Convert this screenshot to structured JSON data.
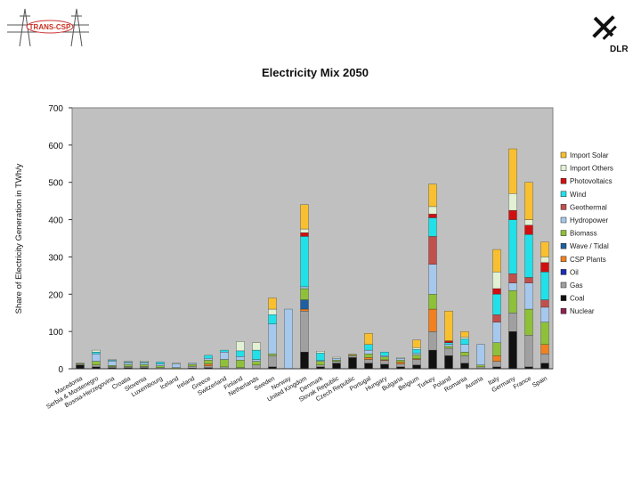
{
  "logos": {
    "left_text": "TRANS-CSP",
    "right_text": "DLR"
  },
  "colors": {
    "Nuclear": "#8b2252",
    "Coal": "#111111",
    "Gas": "#a0a0a0",
    "Oil": "#1a2fb0",
    "CSP Plants": "#f08020",
    "Wave / Tidal": "#1f5fa0",
    "Biomass": "#8ec03a",
    "Hydropower": "#a6c8ec",
    "Geothermal": "#c0504d",
    "Wind": "#22e0e8",
    "Photovoltaics": "#d01010",
    "Import Others": "#e2f0d4",
    "Import Solar": "#f8c030"
  },
  "chart_data": {
    "type": "bar",
    "stacked": true,
    "title": "Electricity Mix 2050",
    "ylabel": "Share of Electricity Generation in TWh/y",
    "xlabel": "",
    "ylim": [
      0,
      700
    ],
    "yticks": [
      0,
      100,
      200,
      300,
      400,
      500,
      600,
      700
    ],
    "grid": false,
    "legend_position": "right",
    "legend": [
      "Import Solar",
      "Import Others",
      "Photovoltaics",
      "Wind",
      "Geothermal",
      "Hydropower",
      "Biomass",
      "Wave / Tidal",
      "CSP Plants",
      "Oil",
      "Gas",
      "Coal",
      "Nuclear"
    ],
    "categories": [
      "Macedonia",
      "Serbia & Montenegro",
      "Bosnia-Herzegovina",
      "Croatia",
      "Slovenia",
      "Luxembourg",
      "Iceland",
      "Ireland",
      "Greece",
      "Switzerland",
      "Finland",
      "Netherlands",
      "Sweden",
      "Norway",
      "United Kingdom",
      "Denmark",
      "Slovak Republic",
      "Czech Republic",
      "Portugal",
      "Hungary",
      "Bulgaria",
      "Belgium",
      "Turkey",
      "Poland",
      "Romania",
      "Austria",
      "Italy",
      "Germany",
      "France",
      "Spain"
    ],
    "series": [
      {
        "name": "Nuclear",
        "values": [
          0,
          0,
          0,
          0,
          0,
          0,
          0,
          0,
          0,
          0,
          0,
          0,
          0,
          0,
          0,
          0,
          0,
          0,
          0,
          0,
          0,
          0,
          0,
          0,
          0,
          0,
          0,
          0,
          0,
          0
        ]
      },
      {
        "name": "Coal",
        "values": [
          10,
          5,
          3,
          3,
          3,
          0,
          0,
          2,
          3,
          0,
          0,
          0,
          5,
          0,
          45,
          5,
          15,
          30,
          15,
          12,
          5,
          10,
          50,
          35,
          15,
          0,
          5,
          100,
          5,
          15
        ]
      },
      {
        "name": "Gas",
        "values": [
          3,
          5,
          3,
          3,
          3,
          3,
          0,
          5,
          5,
          5,
          3,
          10,
          30,
          0,
          110,
          5,
          5,
          5,
          10,
          10,
          8,
          15,
          50,
          20,
          20,
          5,
          15,
          50,
          85,
          25
        ]
      },
      {
        "name": "Oil",
        "values": [
          0,
          0,
          0,
          0,
          0,
          0,
          0,
          0,
          0,
          0,
          0,
          0,
          0,
          0,
          0,
          0,
          0,
          0,
          0,
          0,
          0,
          0,
          0,
          0,
          0,
          0,
          0,
          0,
          0,
          0
        ]
      },
      {
        "name": "CSP Plants",
        "values": [
          0,
          0,
          0,
          0,
          0,
          0,
          0,
          0,
          5,
          0,
          0,
          0,
          0,
          0,
          5,
          0,
          0,
          0,
          5,
          2,
          5,
          2,
          60,
          0,
          0,
          0,
          15,
          0,
          0,
          25
        ]
      },
      {
        "name": "Wave / Tidal",
        "values": [
          0,
          0,
          0,
          0,
          0,
          0,
          0,
          0,
          0,
          0,
          0,
          0,
          0,
          0,
          25,
          0,
          0,
          0,
          0,
          0,
          0,
          0,
          0,
          0,
          0,
          0,
          0,
          0,
          0,
          0
        ]
      },
      {
        "name": "Biomass",
        "values": [
          2,
          10,
          3,
          5,
          5,
          5,
          3,
          5,
          10,
          20,
          20,
          10,
          5,
          0,
          30,
          10,
          3,
          2,
          10,
          8,
          5,
          10,
          40,
          5,
          10,
          5,
          35,
          60,
          70,
          60
        ]
      },
      {
        "name": "Hydropower",
        "values": [
          0,
          20,
          12,
          5,
          5,
          5,
          10,
          3,
          5,
          20,
          10,
          5,
          80,
          160,
          5,
          2,
          5,
          0,
          10,
          3,
          5,
          5,
          80,
          5,
          20,
          55,
          55,
          20,
          70,
          40
        ]
      },
      {
        "name": "Geothermal",
        "values": [
          0,
          0,
          0,
          0,
          0,
          0,
          0,
          0,
          0,
          0,
          0,
          0,
          0,
          0,
          0,
          0,
          0,
          0,
          0,
          0,
          0,
          0,
          75,
          0,
          0,
          0,
          20,
          25,
          15,
          20
        ]
      },
      {
        "name": "Wind",
        "values": [
          0,
          5,
          2,
          2,
          2,
          5,
          0,
          0,
          8,
          5,
          15,
          25,
          25,
          0,
          135,
          20,
          0,
          0,
          15,
          10,
          0,
          10,
          50,
          5,
          15,
          0,
          55,
          145,
          115,
          75
        ]
      },
      {
        "name": "Photovoltaics",
        "values": [
          0,
          0,
          0,
          0,
          0,
          0,
          0,
          0,
          0,
          0,
          0,
          0,
          0,
          0,
          10,
          0,
          0,
          0,
          0,
          0,
          0,
          0,
          10,
          5,
          0,
          0,
          15,
          25,
          25,
          25
        ]
      },
      {
        "name": "Import Others",
        "values": [
          0,
          5,
          2,
          2,
          3,
          0,
          2,
          0,
          0,
          0,
          25,
          20,
          15,
          0,
          10,
          5,
          3,
          0,
          0,
          0,
          2,
          5,
          20,
          0,
          5,
          0,
          45,
          45,
          15,
          15
        ]
      },
      {
        "name": "Import Solar",
        "values": [
          0,
          0,
          0,
          0,
          0,
          0,
          0,
          0,
          0,
          0,
          0,
          0,
          30,
          0,
          65,
          0,
          0,
          2,
          30,
          0,
          0,
          20,
          60,
          80,
          15,
          0,
          60,
          120,
          100,
          40
        ]
      }
    ]
  }
}
